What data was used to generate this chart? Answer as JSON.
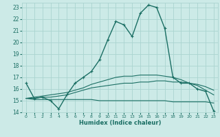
{
  "xlabel": "Humidex (Indice chaleur)",
  "xlim": [
    -0.5,
    23.5
  ],
  "ylim": [
    14,
    23.4
  ],
  "yticks": [
    14,
    15,
    16,
    17,
    18,
    19,
    20,
    21,
    22,
    23
  ],
  "xticks": [
    0,
    1,
    2,
    3,
    4,
    5,
    6,
    7,
    8,
    9,
    10,
    11,
    12,
    13,
    14,
    15,
    16,
    17,
    18,
    19,
    20,
    21,
    22,
    23
  ],
  "bg_color": "#cceae7",
  "grid_color": "#aad4d0",
  "line_color": "#1a6e63",
  "curves": [
    {
      "x": [
        0,
        1,
        2,
        3,
        4,
        5,
        6,
        7,
        8,
        9,
        10,
        11,
        12,
        13,
        14,
        15,
        16,
        17,
        18,
        19,
        20,
        21,
        22,
        23
      ],
      "y": [
        16.5,
        15.2,
        15.3,
        15.0,
        14.3,
        15.5,
        16.5,
        17.0,
        17.5,
        18.5,
        20.2,
        21.8,
        21.5,
        20.5,
        22.5,
        23.2,
        23.0,
        21.2,
        17.0,
        16.5,
        16.5,
        16.0,
        15.8,
        14.1
      ],
      "marker": "+",
      "lw": 1.0
    },
    {
      "x": [
        0,
        1,
        2,
        3,
        4,
        5,
        6,
        7,
        8,
        9,
        10,
        11,
        12,
        13,
        14,
        15,
        16,
        17,
        18,
        19,
        20,
        21,
        22,
        23
      ],
      "y": [
        15.2,
        15.1,
        15.1,
        15.1,
        15.1,
        15.1,
        15.1,
        15.1,
        15.1,
        15.0,
        15.0,
        15.0,
        15.0,
        15.0,
        15.0,
        15.0,
        15.0,
        15.0,
        14.9,
        14.9,
        14.9,
        14.9,
        14.9,
        14.8
      ],
      "marker": null,
      "lw": 0.8
    },
    {
      "x": [
        0,
        1,
        2,
        3,
        4,
        5,
        6,
        7,
        8,
        9,
        10,
        11,
        12,
        13,
        14,
        15,
        16,
        17,
        18,
        19,
        20,
        21,
        22,
        23
      ],
      "y": [
        15.2,
        15.2,
        15.3,
        15.3,
        15.4,
        15.5,
        15.7,
        15.9,
        16.1,
        16.2,
        16.3,
        16.4,
        16.5,
        16.5,
        16.6,
        16.6,
        16.7,
        16.7,
        16.6,
        16.6,
        16.5,
        16.4,
        16.2,
        15.9
      ],
      "marker": null,
      "lw": 0.8
    },
    {
      "x": [
        0,
        1,
        2,
        3,
        4,
        5,
        6,
        7,
        8,
        9,
        10,
        11,
        12,
        13,
        14,
        15,
        16,
        17,
        18,
        19,
        20,
        21,
        22,
        23
      ],
      "y": [
        15.2,
        15.3,
        15.4,
        15.5,
        15.6,
        15.7,
        15.9,
        16.1,
        16.4,
        16.6,
        16.8,
        17.0,
        17.1,
        17.1,
        17.2,
        17.2,
        17.2,
        17.1,
        17.0,
        16.8,
        16.5,
        16.3,
        15.9,
        15.5
      ],
      "marker": null,
      "lw": 0.8
    }
  ]
}
